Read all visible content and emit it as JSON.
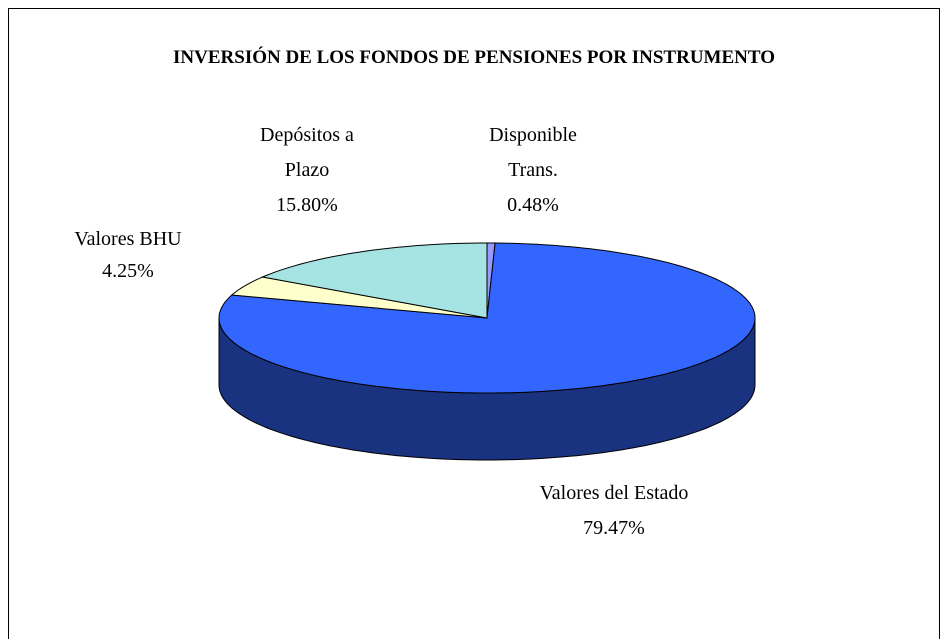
{
  "chart_data": {
    "type": "pie",
    "title": "INVERSIÓN DE LOS FONDOS DE PENSIONES POR INSTRUMENTO",
    "categories": [
      "Disponible Trans.",
      "Valores del Estado",
      "Valores BHU",
      "Depósitos a Plazo"
    ],
    "values": [
      0.48,
      79.47,
      4.25,
      15.8
    ],
    "value_labels": [
      "0.48%",
      "79.47%",
      "4.25%",
      "15.80%"
    ],
    "colors": [
      "#9999ff",
      "#3366ff",
      "#ffffcc",
      "#a6e3e3"
    ],
    "side_colors": [
      "#4d4d99",
      "#1a3380",
      "#99997a",
      "#5a8a8a"
    ]
  }
}
